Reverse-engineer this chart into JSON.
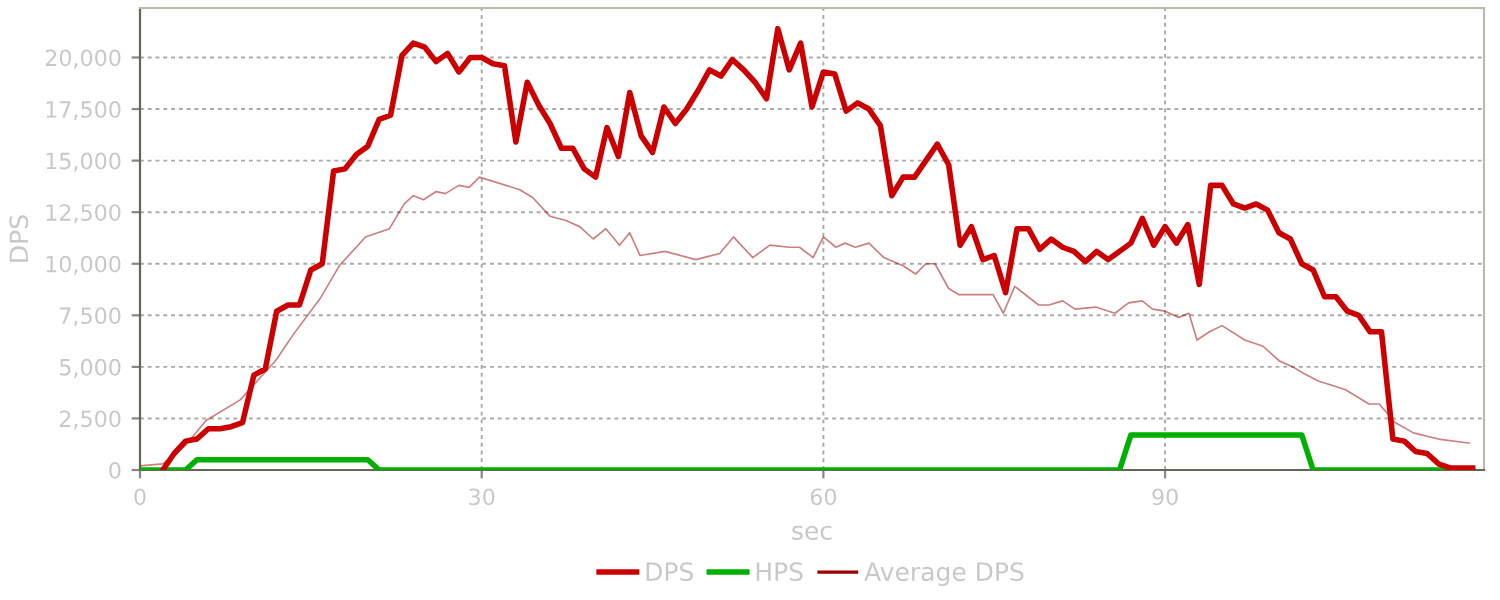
{
  "chart_data": {
    "type": "line",
    "xlabel": "sec",
    "ylabel": "DPS",
    "xlim": [
      0,
      118
    ],
    "ylim": [
      0,
      22400
    ],
    "xticks": [
      0,
      30,
      60,
      90
    ],
    "yticks": [
      0,
      {
        "value": 2500,
        "label": "2,500"
      },
      {
        "value": 5000,
        "label": "5,000"
      },
      {
        "value": 7500,
        "label": "7,500"
      },
      {
        "value": 10000,
        "label": "10,000"
      },
      {
        "value": 12500,
        "label": "12,500"
      },
      {
        "value": 15000,
        "label": "15,000"
      },
      {
        "value": 17500,
        "label": "17,500"
      },
      {
        "value": 20000,
        "label": "20,000"
      }
    ],
    "grid": true,
    "legend": "bottom",
    "marker": "none",
    "line_style": "solid",
    "series": [
      {
        "name": "DPS",
        "color": "#cc0000",
        "x": [
          2,
          3,
          4,
          5,
          6,
          7,
          8,
          9,
          10,
          11,
          12,
          13,
          14,
          15,
          16,
          17,
          18,
          19,
          20,
          21,
          22,
          23,
          24,
          25,
          26,
          27,
          28,
          29,
          30,
          31,
          32,
          33,
          34,
          35,
          36,
          37,
          38,
          39,
          40,
          41,
          42,
          43,
          44,
          45,
          46,
          47,
          48,
          49,
          50,
          51,
          52,
          53,
          54,
          55,
          56,
          57,
          58,
          59,
          60,
          61,
          62,
          63,
          64,
          65,
          66,
          67,
          68,
          69,
          70,
          71,
          72,
          73,
          74,
          75,
          76,
          77,
          78,
          79,
          80,
          81,
          82,
          83,
          84,
          85,
          86,
          87,
          88,
          89,
          90,
          91,
          92,
          93,
          94,
          95,
          96,
          97,
          98,
          99,
          100,
          101,
          102,
          103,
          104,
          105,
          106,
          107,
          108,
          109,
          110,
          111,
          112,
          113,
          114,
          115,
          116,
          117
        ],
        "values": [
          0,
          800,
          1400,
          1500,
          2000,
          2000,
          2100,
          2300,
          4600,
          4900,
          7700,
          8000,
          8000,
          9700,
          10000,
          14500,
          14600,
          15300,
          15700,
          17000,
          17200,
          20100,
          20700,
          20500,
          19800,
          20200,
          19300,
          20000,
          20000,
          19700,
          19600,
          15900,
          18800,
          17700,
          16800,
          15600,
          15600,
          14600,
          14200,
          16600,
          15200,
          18300,
          16200,
          15400,
          17600,
          16800,
          17500,
          18400,
          19400,
          19100,
          19900,
          19400,
          18800,
          18000,
          21400,
          19400,
          20700,
          17600,
          19300,
          19200,
          17400,
          17800,
          17500,
          16700,
          13300,
          14200,
          14200,
          15000,
          15800,
          14800,
          10900,
          11800,
          10200,
          10400,
          8600,
          11700,
          11700,
          10700,
          11200,
          10800,
          10600,
          10100,
          10600,
          10200,
          10600,
          11000,
          12200,
          10900,
          11800,
          11000,
          11900,
          9000,
          13800,
          13800,
          12900,
          12700,
          12900,
          12600,
          11500,
          11200,
          10000,
          9700,
          8400,
          8400,
          7700,
          7500,
          6700,
          6700,
          1500,
          1400,
          900,
          800,
          300,
          100,
          100,
          100
        ]
      },
      {
        "name": "HPS",
        "color": "#00b000",
        "x": [
          0,
          4,
          5,
          20,
          21,
          86,
          87,
          102,
          103,
          117
        ],
        "values": [
          0,
          0,
          500,
          500,
          0,
          0,
          1700,
          1700,
          0,
          0
        ]
      },
      {
        "name": "Average DPS",
        "color": "#990000",
        "x": [
          0,
          2,
          4,
          5.8,
          8.8,
          11.9,
          13.5,
          15.8,
          17.5,
          19.8,
          21.9,
          23.2,
          24,
          24.9,
          26,
          26.8,
          28,
          28.9,
          29.8,
          33.3,
          34.5,
          36,
          37.4,
          38.6,
          39.8,
          40.9,
          42.1,
          43,
          43.9,
          46.1,
          48.8,
          50.9,
          52.1,
          53.8,
          55.3,
          57,
          57.9,
          59.1,
          60,
          61.1,
          61.9,
          62.8,
          64,
          65.3,
          67,
          68.1,
          69,
          69.8,
          71,
          71.9,
          74.9,
          75.8,
          76.8,
          78.9,
          79.8,
          81,
          82.1,
          83.9,
          85.6,
          86.8,
          88,
          88.9,
          90,
          91.2,
          92.1,
          92.8,
          93.9,
          95,
          97,
          98.6,
          100,
          101.2,
          102.1,
          103.5,
          104.7,
          105.8,
          107.9,
          108.8,
          110.2,
          111.8,
          114,
          116.7
        ],
        "values": [
          200,
          300,
          1200,
          2400,
          3400,
          5300,
          6600,
          8300,
          9900,
          11300,
          11700,
          12900,
          13300,
          13100,
          13500,
          13400,
          13800,
          13700,
          14200,
          13600,
          13200,
          12300,
          12100,
          11800,
          11200,
          11700,
          10900,
          11500,
          10400,
          10600,
          10200,
          10500,
          11300,
          10300,
          10900,
          10800,
          10800,
          10300,
          11300,
          10800,
          11000,
          10800,
          11000,
          10300,
          9900,
          9500,
          10000,
          10000,
          8800,
          8500,
          8500,
          7600,
          8900,
          8000,
          8000,
          8200,
          7800,
          7900,
          7600,
          8100,
          8200,
          7800,
          7700,
          7400,
          7600,
          6300,
          6700,
          7000,
          6300,
          6000,
          5300,
          5000,
          4700,
          4300,
          4100,
          3900,
          3200,
          3200,
          2300,
          1800,
          1500,
          1300
        ]
      }
    ]
  }
}
